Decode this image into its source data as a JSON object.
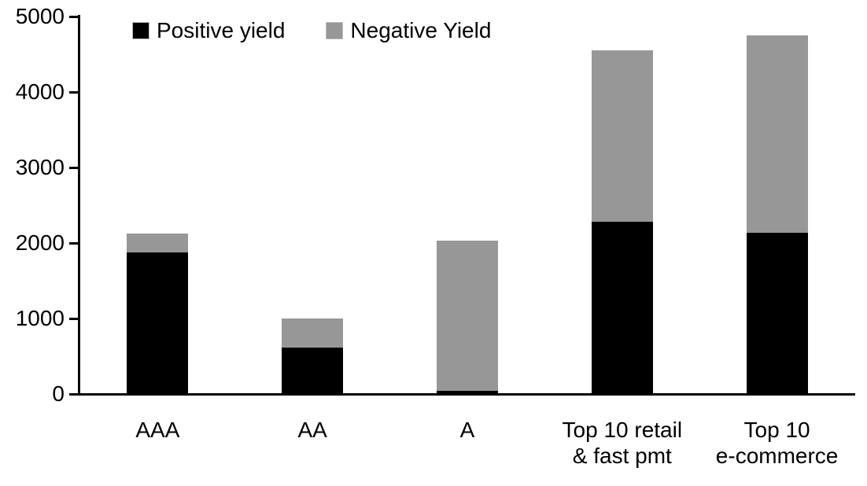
{
  "chart_data": {
    "type": "bar",
    "stacked": true,
    "title": "",
    "xlabel": "",
    "ylabel": "",
    "categories": [
      "AAA",
      "AA",
      "A",
      "Top 10 retail\n& fast pmt",
      "Top 10\ne-commerce"
    ],
    "series": [
      {
        "name": "Positive yield",
        "color": "#000000",
        "values": [
          1880,
          610,
          45,
          2280,
          2140
        ]
      },
      {
        "name": "Negative Yield",
        "color": "#979797",
        "values": [
          240,
          390,
          1985,
          2270,
          2610
        ]
      }
    ],
    "totals": [
      2120,
      1000,
      2030,
      4550,
      4750
    ],
    "ylim": [
      0,
      5000
    ],
    "yticks": [
      0,
      1000,
      2000,
      3000,
      4000,
      5000
    ],
    "grid": false,
    "legend_position": "top-inside",
    "background_color": "#ffffff",
    "axis_color": "#000000"
  }
}
